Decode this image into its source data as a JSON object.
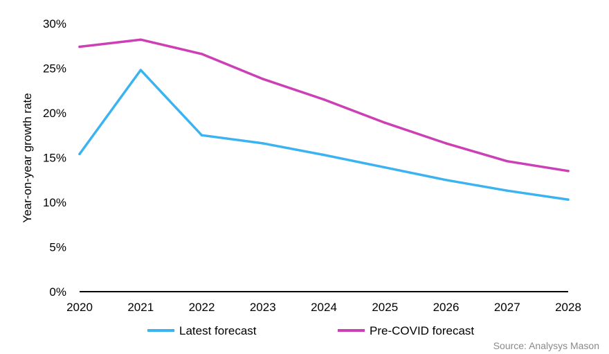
{
  "chart_data": {
    "type": "line",
    "x": [
      "2020",
      "2021",
      "2022",
      "2023",
      "2024",
      "2025",
      "2026",
      "2027",
      "2028"
    ],
    "ylabel": "Year-on-year growth rate",
    "ylim": [
      0,
      30
    ],
    "yticks": [
      "0%",
      "5%",
      "10%",
      "15%",
      "20%",
      "25%",
      "30%"
    ],
    "grid": false,
    "legend_position": "bottom",
    "series": [
      {
        "name": "Latest forecast",
        "color": "#3bb3f0",
        "values": [
          15.4,
          24.8,
          17.5,
          16.6,
          15.3,
          13.9,
          12.5,
          11.3,
          10.3
        ]
      },
      {
        "name": "Pre-COVID forecast",
        "color": "#cc3fb5",
        "values": [
          27.4,
          28.2,
          26.6,
          23.8,
          21.5,
          18.9,
          16.6,
          14.6,
          13.5
        ]
      }
    ]
  },
  "source": "Source: Analysys Mason"
}
